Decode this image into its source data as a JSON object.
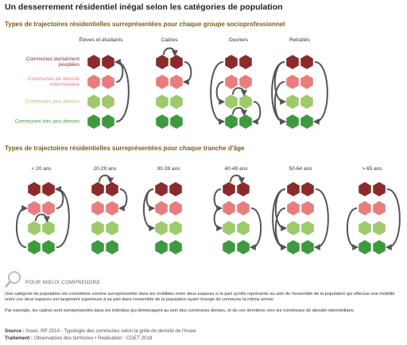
{
  "title": "Un desserrement résidentiel inégal selon les catégories de population",
  "socio": {
    "title": "Types de trajectoires résidentielles surreprésentées pour chaque groupe socioprofessionnel",
    "groups": [
      "Élèves et étudiants",
      "Cadres",
      "Ouvriers",
      "Retraités"
    ]
  },
  "rows": [
    "Communes densément peuplées",
    "Communes de densité intermédiaire",
    "Communes peu denses",
    "Communes très peu denses"
  ],
  "age": {
    "title": "Types de trajectoires résidentielles surreprésentées pour chaque tranche d'âge",
    "groups": [
      "< 20 ans",
      "20-29 ans",
      "30-39 ans",
      "40-49 ans",
      "50-64 ans",
      "> 65 ans"
    ]
  },
  "help": {
    "title": "POUR MIEUX COMPRENDRE",
    "paragraphs": [
      "Une catégorie de population est considérée comme surreprésentée dans les mobilités entre deux espaces si la part qu'elle représente au sein de l'ensemble de la population qui effectue une mobilité entre ces deux espaces est largement supérieure à sa part dans l'ensemble de la population ayant changé de commune la même année.",
      "Par exemple, les cadres sont surreprésentés dans les individus qui déménagent au sein des communes denses, et de ces dernières vers les communes de densité intermédiaire."
    ]
  },
  "source": {
    "label": "Source :",
    "text": "Insee, RP 2014 - Typologie des communes selon la grille de densité de l'Insee"
  },
  "credit": {
    "label": "Traitement :",
    "text": "Observatoire des territoires • Réalisation : CGET 2018"
  }
}
